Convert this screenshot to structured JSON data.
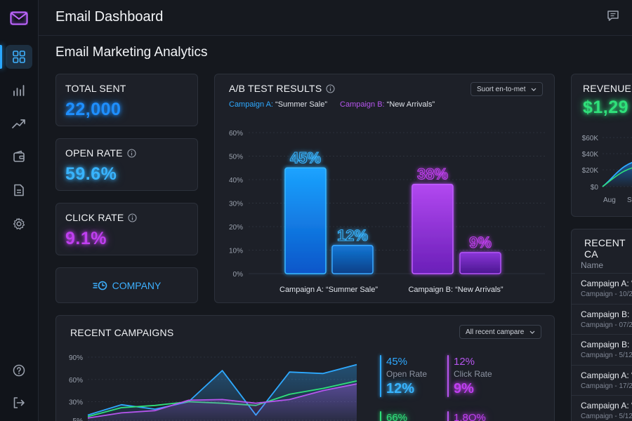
{
  "app": {
    "title": "Email Dashboard"
  },
  "page": {
    "title": "Email Marketing Analytics"
  },
  "sidebar": {
    "items": [
      {
        "icon": "grid-icon",
        "active": true
      },
      {
        "icon": "bar-chart-icon",
        "active": false
      },
      {
        "icon": "trend-line-icon",
        "active": false
      },
      {
        "icon": "wallet-icon",
        "active": false
      },
      {
        "icon": "document-icon",
        "active": false
      },
      {
        "icon": "settings-icon",
        "active": false
      }
    ],
    "bottom": [
      {
        "icon": "help-icon"
      },
      {
        "icon": "logout-icon"
      }
    ]
  },
  "kpis": {
    "total_sent": {
      "label": "TOTAL SENT",
      "value": "22,000"
    },
    "open_rate": {
      "label": "OPEN RATE",
      "value": "59.6%"
    },
    "click_rate": {
      "label": "CLICK RATE",
      "value": "9.1%"
    }
  },
  "company_button": {
    "label": "COMPANY"
  },
  "ab_test": {
    "title": "A/B TEST RESULTS",
    "sort_label": "Suort en-to-met",
    "legend": {
      "a_name": "Campaign A:",
      "a_quote": "“Summer Sale”",
      "b_name": "Campaign B:",
      "b_quote": "“New Arrivals”"
    },
    "y_ticks": [
      "60%",
      "50%",
      "40%",
      "30%",
      "20%",
      "10%",
      "0%"
    ],
    "bar_labels": [
      "45%",
      "12%",
      "38%",
      "9%"
    ],
    "group_labels": [
      "Campaign A: “Summer Sale”",
      "Campaign B: “New Arrivals”"
    ]
  },
  "revenue": {
    "title": "REVENUE",
    "value": "$1,29",
    "y_ticks": [
      "$60K",
      "$40K",
      "$20K",
      "$0"
    ],
    "x_ticks": [
      "Aug",
      "Se"
    ]
  },
  "recent_campaigns": {
    "title": "RECENT CAMPAIGNS",
    "filter_label": "All recent campare",
    "y_ticks": [
      "90%",
      "60%",
      "30%",
      "5%"
    ],
    "stats": [
      {
        "top": "45%",
        "label": "Open Rate",
        "big": "12%",
        "color": "#2ea9ff"
      },
      {
        "top": "12%",
        "label": "Click Rate",
        "big": "9%",
        "color": "#b655ee"
      },
      {
        "top": "66%",
        "label": "",
        "big": "",
        "color": "#2fe07a"
      },
      {
        "top": "1.8O%",
        "label": "",
        "big": "",
        "color": "#b655ee"
      }
    ]
  },
  "recent_list": {
    "title": "RECENT CA",
    "column": "Name",
    "rows": [
      {
        "name": "Campaign A: “S",
        "date": "Campaign - 10/2"
      },
      {
        "name": "Campaign B: “N",
        "date": "Campaign - 07/2"
      },
      {
        "name": "Campaign B: “N",
        "date": "Campaign - 5/12"
      },
      {
        "name": "Campaign A: “L",
        "date": "Campaign - 17/2"
      },
      {
        "name": "Campaign A: “S",
        "date": "Campaign - 5/12"
      }
    ]
  },
  "chart_data": [
    {
      "type": "bar",
      "title": "A/B TEST RESULTS",
      "categories": [
        "Campaign A: “Summer Sale”",
        "Campaign B: “New Arrivals”"
      ],
      "series": [
        {
          "name": "Campaign A: “Summer Sale”",
          "values": [
            45,
            12
          ]
        },
        {
          "name": "Campaign B: “New Arrivals”",
          "values": [
            38,
            9
          ]
        }
      ],
      "ylim": [
        0,
        60
      ],
      "y_ticks": [
        0,
        10,
        20,
        30,
        40,
        50,
        60
      ],
      "grid": true
    },
    {
      "type": "area",
      "title": "REVENUE",
      "x": [
        "Aug",
        "Se"
      ],
      "ylim": [
        0,
        60
      ],
      "y_ticks": [
        "$0",
        "$20K",
        "$40K",
        "$60K"
      ]
    },
    {
      "type": "line",
      "title": "RECENT CAMPAIGNS",
      "ylim": [
        5,
        90
      ],
      "y_ticks": [
        5,
        30,
        60,
        90
      ],
      "series": [
        {
          "color": "#2ea9ff",
          "values": [
            12,
            26,
            20,
            30,
            72,
            12,
            70,
            68,
            80
          ]
        },
        {
          "color": "#2fe07a",
          "values": [
            10,
            22,
            25,
            30,
            28,
            25,
            40,
            48,
            58
          ]
        },
        {
          "color": "#b655ee",
          "values": [
            8,
            15,
            18,
            32,
            33,
            28,
            33,
            45,
            54
          ]
        }
      ]
    }
  ]
}
